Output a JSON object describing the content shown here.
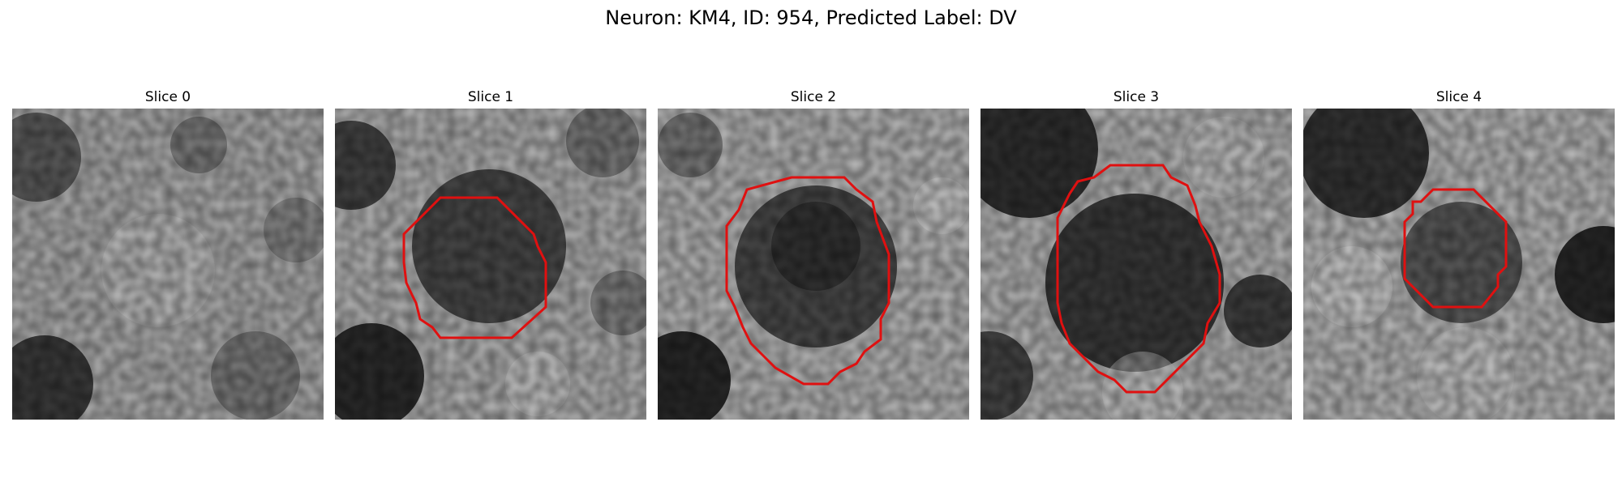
{
  "figure": {
    "suptitle": "Neuron: KM4, ID: 954, Predicted Label: DV"
  },
  "colors": {
    "contour": "#e01010"
  },
  "panels": [
    {
      "title": "Slice 0",
      "has_contour": false
    },
    {
      "title": "Slice 1",
      "has_contour": true
    },
    {
      "title": "Slice 2",
      "has_contour": true
    },
    {
      "title": "Slice 3",
      "has_contour": true
    },
    {
      "title": "Slice 4",
      "has_contour": true
    }
  ]
}
